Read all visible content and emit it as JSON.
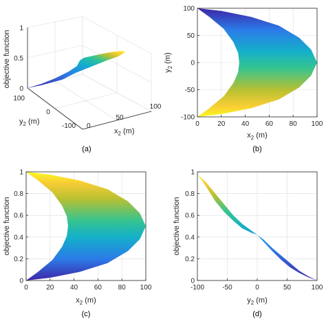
{
  "colors": {
    "c0": "#3e26a8",
    "c1": "#2b7ce8",
    "c2": "#14b0c9",
    "c3": "#35c490",
    "c4": "#b7c032",
    "c5": "#f9cd34",
    "c6": "#f9f821"
  },
  "chart_data": [
    {
      "id": "a",
      "type": "surface-3d",
      "caption": "(a)",
      "xlabel": "x",
      "xlabel_sub": "2",
      "xlabel_unit": " (m)",
      "ylabel": "y",
      "ylabel_sub": "2",
      "ylabel_unit": " (m)",
      "zlabel": "objective function",
      "xticks": [
        "0",
        "50",
        "100"
      ],
      "yticks": [
        "100",
        "0",
        "-100"
      ],
      "zticks": [
        "0",
        "0.5",
        "1"
      ],
      "xlim": [
        0,
        100
      ],
      "ylim": [
        -100,
        100
      ],
      "zlim": [
        0,
        1
      ],
      "grid": true
    },
    {
      "id": "b",
      "type": "area",
      "caption": "(b)",
      "xlabel": "x",
      "xlabel_sub": "2",
      "xlabel_unit": " (m)",
      "ylabel": "y",
      "ylabel_sub": "2",
      "ylabel_unit": " (m)",
      "xticks": [
        "0",
        "20",
        "40",
        "60",
        "80",
        "100"
      ],
      "yticks": [
        "100",
        "50",
        "0",
        "-50",
        "-100"
      ],
      "xlim": [
        0,
        100
      ],
      "ylim": [
        -100,
        100
      ],
      "grid": true,
      "outer_boundary": {
        "x": [
          0,
          20,
          45,
          68,
          85,
          95,
          100,
          95,
          85,
          68,
          45,
          20,
          0
        ],
        "y": [
          100,
          95,
          84,
          68,
          46,
          24,
          0,
          -24,
          -46,
          -68,
          -84,
          -95,
          -100
        ]
      },
      "inner_boundary": {
        "x": [
          0,
          10,
          22,
          30,
          34,
          35,
          34,
          30,
          22,
          10,
          0
        ],
        "y": [
          100,
          84,
          62,
          38,
          18,
          0,
          -18,
          -38,
          -62,
          -84,
          -100
        ]
      }
    },
    {
      "id": "c",
      "type": "area",
      "caption": "(c)",
      "xlabel": "x",
      "xlabel_sub": "2",
      "xlabel_unit": " (m)",
      "ylabel": "objective function",
      "xticks": [
        "0",
        "20",
        "40",
        "60",
        "80",
        "100"
      ],
      "yticks": [
        "1",
        "0.8",
        "0.6",
        "0.4",
        "0.2",
        "0"
      ],
      "xlim": [
        0,
        100
      ],
      "ylim": [
        0,
        1
      ],
      "grid": true,
      "outer_boundary": {
        "x": [
          0,
          20,
          45,
          68,
          85,
          95,
          100,
          95,
          85,
          68,
          45,
          20,
          0
        ],
        "y": [
          1,
          0.975,
          0.92,
          0.84,
          0.73,
          0.62,
          0.5,
          0.38,
          0.27,
          0.16,
          0.08,
          0.025,
          0
        ]
      },
      "inner_boundary": {
        "x": [
          0,
          10,
          22,
          30,
          34,
          35,
          34,
          30,
          22,
          10,
          0
        ],
        "y": [
          1,
          0.92,
          0.81,
          0.69,
          0.59,
          0.5,
          0.41,
          0.31,
          0.19,
          0.08,
          0
        ]
      }
    },
    {
      "id": "d",
      "type": "area",
      "caption": "(d)",
      "xlabel": "y",
      "xlabel_sub": "2",
      "xlabel_unit": " (m)",
      "ylabel": "objective function",
      "xticks": [
        "-100",
        "-50",
        "0",
        "50",
        "100"
      ],
      "yticks": [
        "1",
        "0.8",
        "0.6",
        "0.4",
        "0.2",
        "0"
      ],
      "xlim": [
        -100,
        100
      ],
      "ylim": [
        0,
        1
      ],
      "grid": true,
      "upper_edge": {
        "x": [
          -100,
          -85,
          -70,
          -55,
          -40,
          -25,
          -10,
          0,
          10,
          25,
          40,
          55,
          70,
          85,
          100
        ],
        "y": [
          0.98,
          0.9,
          0.8,
          0.7,
          0.6,
          0.52,
          0.46,
          0.42,
          0.36,
          0.27,
          0.19,
          0.12,
          0.07,
          0.03,
          0.0
        ]
      },
      "lower_edge": {
        "x": [
          -100,
          -85,
          -70,
          -55,
          -40,
          -25,
          -10,
          0,
          10,
          25,
          40,
          55,
          70,
          85,
          100
        ],
        "y": [
          0.98,
          0.86,
          0.73,
          0.63,
          0.55,
          0.48,
          0.44,
          0.42,
          0.38,
          0.3,
          0.23,
          0.16,
          0.09,
          0.04,
          0.0
        ]
      }
    }
  ]
}
